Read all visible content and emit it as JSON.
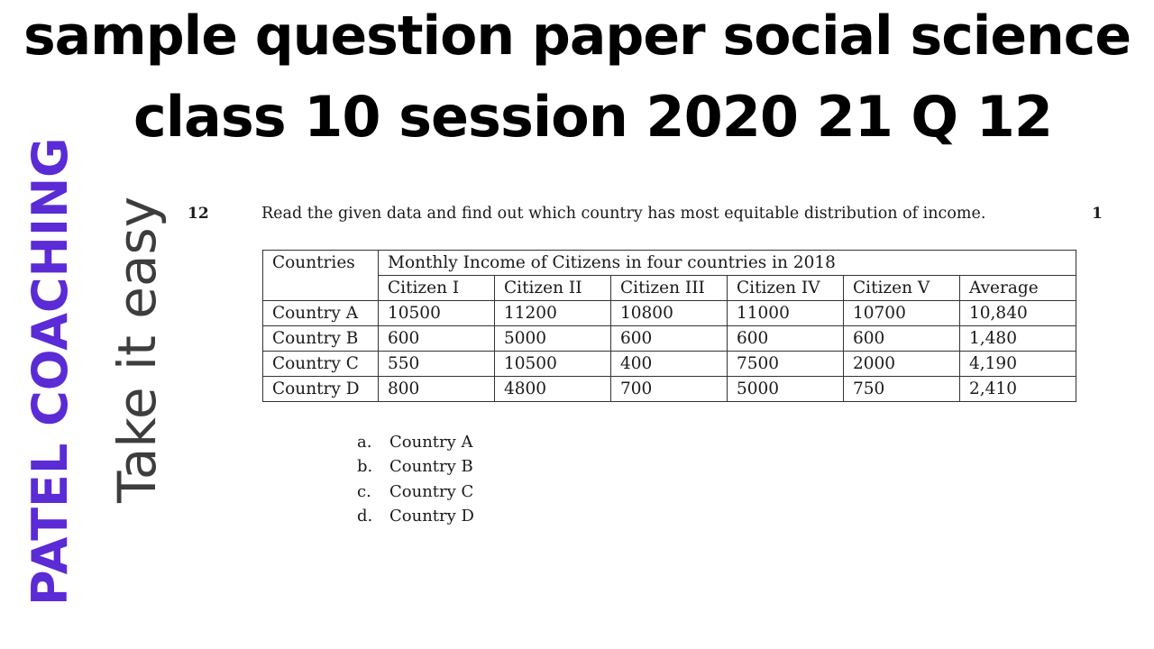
{
  "title": {
    "line1": "sample question paper social science",
    "line2": "class 10 session 2020 21 Q 12"
  },
  "brand": {
    "name": "PATEL COACHING",
    "tagline": "Take it easy",
    "color": "#5b2bd6"
  },
  "question": {
    "number": "12",
    "text": "Read the given data and find out which country has most equitable distribution of income.",
    "marks": "1"
  },
  "table": {
    "corner_header": "Countries",
    "group_header": "Monthly Income of Citizens in four countries in 2018",
    "columns": [
      "Citizen I",
      "Citizen II",
      "Citizen III",
      "Citizen IV",
      "Citizen V",
      "Average"
    ],
    "rows": [
      {
        "country": "Country A",
        "values": [
          "10500",
          "11200",
          "10800",
          "11000",
          "10700",
          "10,840"
        ]
      },
      {
        "country": "Country B",
        "values": [
          "600",
          "5000",
          "600",
          "600",
          "600",
          "1,480"
        ]
      },
      {
        "country": "Country C",
        "values": [
          "550",
          "10500",
          "400",
          "7500",
          "2000",
          "4,190"
        ]
      },
      {
        "country": "Country D",
        "values": [
          "800",
          "4800",
          "700",
          "5000",
          "750",
          "2,410"
        ]
      }
    ]
  },
  "options": [
    {
      "letter": "a.",
      "text": "Country A"
    },
    {
      "letter": "b.",
      "text": "Country B"
    },
    {
      "letter": "c.",
      "text": "Country C"
    },
    {
      "letter": "d.",
      "text": "Country D"
    }
  ]
}
